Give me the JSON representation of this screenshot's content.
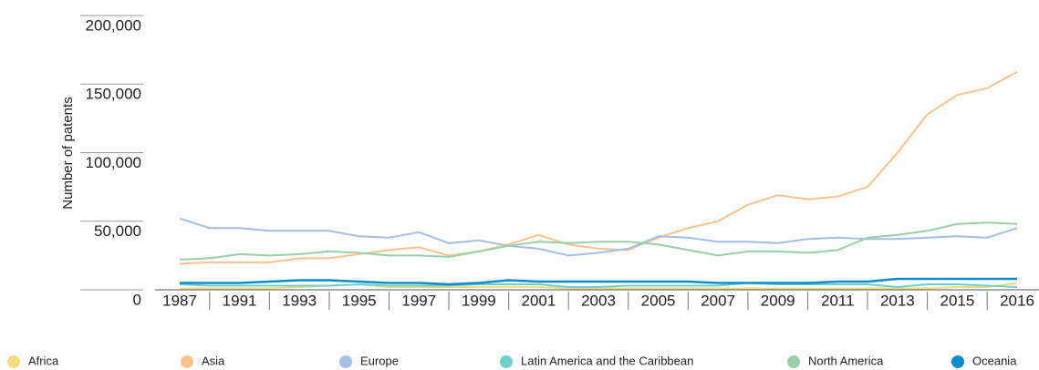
{
  "chart_data": {
    "type": "line",
    "y_label": "Number of patents",
    "categories": [
      "1987",
      null,
      "1991",
      null,
      "1993",
      null,
      "1995",
      null,
      "1997",
      null,
      "1999",
      null,
      "2001",
      null,
      "2003",
      null,
      "2005",
      null,
      "2007",
      null,
      "2009",
      null,
      "2011",
      null,
      "2013",
      null,
      "2015",
      null,
      "2016"
    ],
    "ylim": [
      0,
      200000
    ],
    "yticks": [
      0,
      {
        "value": 50000,
        "label": "50,000"
      },
      {
        "value": 100000,
        "label": "100,000"
      },
      {
        "value": 150000,
        "label": "150,000"
      },
      {
        "value": 200000,
        "label": "200,000"
      }
    ],
    "series": [
      {
        "name": "Africa",
        "color": "#f5dc7e",
        "values": [
          1000,
          1000,
          1000,
          1000,
          2000,
          3000,
          4000,
          2000,
          2000,
          2000,
          2000,
          2000,
          2000,
          1000,
          1000,
          1000,
          1000,
          1000,
          1000,
          1000,
          1000,
          1000,
          1000,
          1000,
          1000,
          1000,
          2000,
          2000,
          5000
        ]
      },
      {
        "name": "Asia",
        "color": "#f9c38f",
        "values": [
          19000,
          20000,
          20000,
          20000,
          23000,
          23000,
          26000,
          29000,
          31000,
          25000,
          28000,
          33000,
          40000,
          33000,
          30000,
          29000,
          38000,
          45000,
          50000,
          62000,
          69000,
          66000,
          68000,
          75000,
          100000,
          128000,
          142000,
          147000,
          159000
        ]
      },
      {
        "name": "Europe",
        "color": "#a3bfe3",
        "values": [
          52000,
          45000,
          45000,
          43000,
          43000,
          43000,
          39000,
          38000,
          42000,
          34000,
          36000,
          32000,
          30000,
          25000,
          27000,
          30000,
          39000,
          38000,
          35000,
          35000,
          34000,
          37000,
          38000,
          37000,
          37000,
          38000,
          39000,
          38000,
          45000
        ]
      },
      {
        "name": "Latin America and the Caribbean",
        "color": "#6ccfcb",
        "values": [
          4000,
          3000,
          3000,
          3000,
          3000,
          3000,
          4000,
          3000,
          3000,
          3000,
          4000,
          4000,
          4000,
          2000,
          2000,
          3000,
          3000,
          3000,
          3000,
          5000,
          4000,
          4000,
          4000,
          4000,
          2000,
          4000,
          4000,
          3000,
          2000
        ]
      },
      {
        "name": "North America",
        "color": "#98d0a8",
        "values": [
          22000,
          23000,
          26000,
          25000,
          26000,
          28000,
          27000,
          25000,
          25000,
          24000,
          28000,
          32000,
          35000,
          34000,
          35000,
          35000,
          33000,
          29000,
          25000,
          28000,
          28000,
          27000,
          29000,
          38000,
          40000,
          43000,
          48000,
          49000,
          48000
        ]
      },
      {
        "name": "Oceania",
        "color": "#0a8dc9",
        "values": [
          5000,
          5000,
          5000,
          6000,
          7000,
          7000,
          6000,
          5000,
          5000,
          4000,
          5000,
          7000,
          6000,
          6000,
          6000,
          6000,
          6000,
          6000,
          5000,
          5000,
          5000,
          5000,
          6000,
          6000,
          8000,
          8000,
          8000,
          8000,
          8000
        ]
      }
    ]
  }
}
